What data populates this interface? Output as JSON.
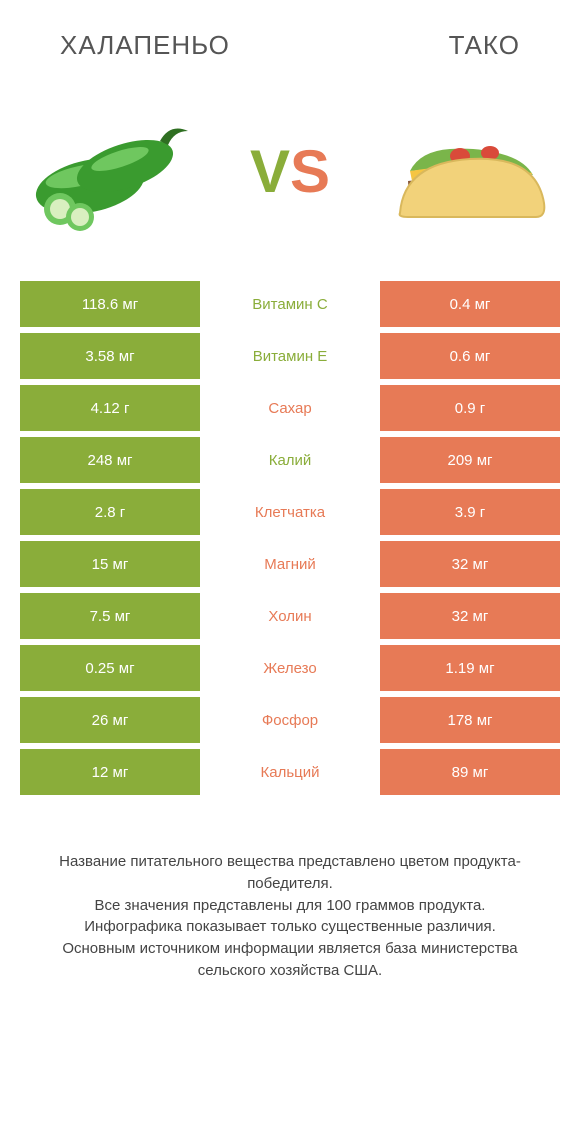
{
  "header": {
    "left_title": "ХАЛАПЕНЬО",
    "right_title": "ТАКО"
  },
  "vs": {
    "v": "V",
    "s": "S"
  },
  "colors": {
    "left": "#8aad3a",
    "right": "#e77a56",
    "bg": "#ffffff",
    "text": "#444"
  },
  "rows": [
    {
      "left": "118.6 мг",
      "label": "Витамин C",
      "right": "0.4 мг",
      "winner": "left"
    },
    {
      "left": "3.58 мг",
      "label": "Витамин E",
      "right": "0.6 мг",
      "winner": "left"
    },
    {
      "left": "4.12 г",
      "label": "Сахар",
      "right": "0.9 г",
      "winner": "right"
    },
    {
      "left": "248 мг",
      "label": "Калий",
      "right": "209 мг",
      "winner": "left"
    },
    {
      "left": "2.8 г",
      "label": "Клетчатка",
      "right": "3.9 г",
      "winner": "right"
    },
    {
      "left": "15 мг",
      "label": "Магний",
      "right": "32 мг",
      "winner": "right"
    },
    {
      "left": "7.5 мг",
      "label": "Холин",
      "right": "32 мг",
      "winner": "right"
    },
    {
      "left": "0.25 мг",
      "label": "Железо",
      "right": "1.19 мг",
      "winner": "right"
    },
    {
      "left": "26 мг",
      "label": "Фосфор",
      "right": "178 мг",
      "winner": "right"
    },
    {
      "left": "12 мг",
      "label": "Кальций",
      "right": "89 мг",
      "winner": "right"
    }
  ],
  "footer": {
    "line1": "Название питательного вещества представлено цветом продукта-победителя.",
    "line2": "Все значения представлены для 100 граммов продукта.",
    "line3": "Инфографика показывает только существенные различия.",
    "line4": "Основным источником информации является база министерства сельского хозяйства США."
  }
}
